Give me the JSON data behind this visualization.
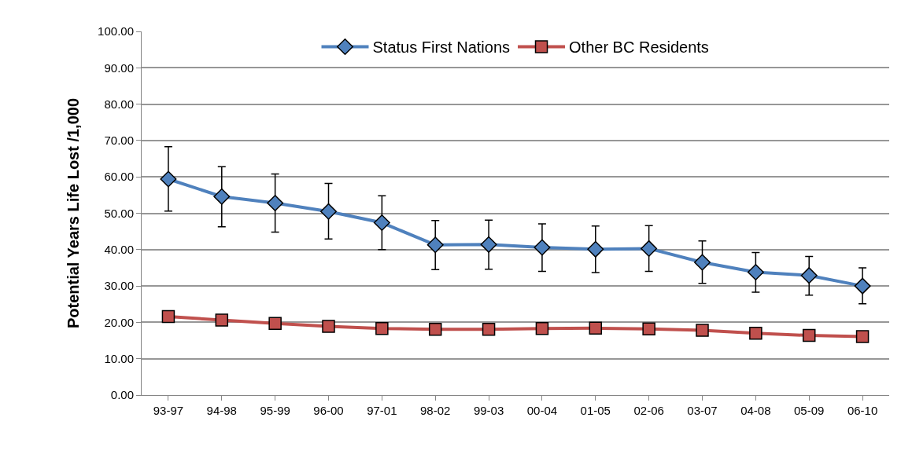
{
  "chart_data": {
    "type": "line",
    "ylabel": "Potential Years Life Lost /1,000",
    "categories": [
      "93-97",
      "94-98",
      "95-99",
      "96-00",
      "97-01",
      "98-02",
      "99-03",
      "00-04",
      "01-05",
      "02-06",
      "03-07",
      "04-08",
      "05-09",
      "06-10"
    ],
    "series": [
      {
        "name": "Status First Nations",
        "color": "#4f81bd",
        "marker": "diamond",
        "values": [
          59.4,
          54.6,
          52.8,
          50.5,
          47.4,
          41.3,
          41.4,
          40.6,
          40.1,
          40.3,
          36.5,
          33.8,
          32.9,
          30.0
        ],
        "errors": [
          [
            50.6,
            68.3
          ],
          [
            46.3,
            62.8
          ],
          [
            44.8,
            60.8
          ],
          [
            42.9,
            58.2
          ],
          [
            40.0,
            54.8
          ],
          [
            34.5,
            48.0
          ],
          [
            34.6,
            48.1
          ],
          [
            34.0,
            47.1
          ],
          [
            33.7,
            46.5
          ],
          [
            34.0,
            46.6
          ],
          [
            30.7,
            42.4
          ],
          [
            28.3,
            39.2
          ],
          [
            27.5,
            38.1
          ],
          [
            25.1,
            35.0
          ]
        ]
      },
      {
        "name": "Other BC Residents",
        "color": "#c0504d",
        "marker": "square",
        "values": [
          21.6,
          20.6,
          19.7,
          18.9,
          18.3,
          18.1,
          18.1,
          18.3,
          18.4,
          18.2,
          17.8,
          17.0,
          16.4,
          16.1
        ]
      }
    ],
    "ylim": [
      0,
      100
    ],
    "yticks": [
      {
        "value": 0,
        "label": "0.00"
      },
      {
        "value": 10,
        "label": "10.00"
      },
      {
        "value": 20,
        "label": "20.00"
      },
      {
        "value": 30,
        "label": "30.00"
      },
      {
        "value": 40,
        "label": "40.00"
      },
      {
        "value": 50,
        "label": "50.00"
      },
      {
        "value": 60,
        "label": "60.00"
      },
      {
        "value": 70,
        "label": "70.00"
      },
      {
        "value": 80,
        "label": "80.00"
      },
      {
        "value": 90,
        "label": "90.00"
      },
      {
        "value": 100,
        "label": "100.00"
      }
    ],
    "grid": "y",
    "legend": "top",
    "line_style": "solid"
  }
}
